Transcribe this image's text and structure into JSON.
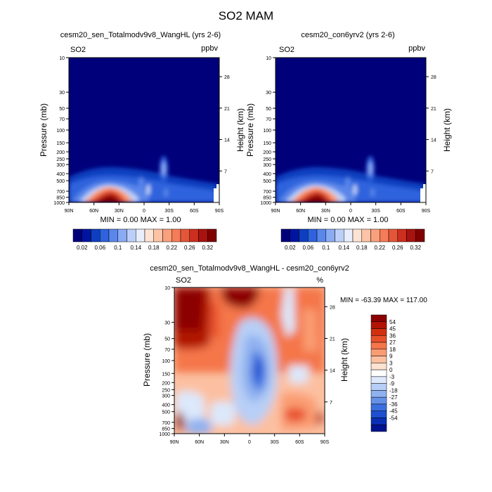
{
  "title": "SO2 MAM",
  "chart_data": [
    {
      "type": "heatmap",
      "title": "cesm20_sen_Totalmodv9v8_WangHL (yrs 2-6)",
      "left_label": "SO2",
      "right_label": "ppbv",
      "xlabel": "",
      "ylabel": "Pressure (mb)",
      "y2label": "Height (km)",
      "x_ticks": [
        "90N",
        "60N",
        "30N",
        "0",
        "30S",
        "60S",
        "90S"
      ],
      "y_ticks": [
        10,
        30,
        50,
        70,
        100,
        150,
        200,
        250,
        300,
        400,
        500,
        700,
        850,
        1000
      ],
      "y2_ticks": [
        28,
        21,
        14,
        7
      ],
      "stats": "MIN =   0.00  MAX =   1.00",
      "colorbar": {
        "orientation": "horizontal",
        "colors": [
          "#00007a",
          "#0014a0",
          "#0d3fc0",
          "#2e63dd",
          "#5a87ea",
          "#8aabf2",
          "#bccff8",
          "#e8eefc",
          "#fde3d3",
          "#fcc3a6",
          "#f9a07c",
          "#f47c58",
          "#e55638",
          "#cc2e1f",
          "#a8120f",
          "#800000"
        ],
        "labels": [
          "0.02",
          "0.06",
          "0.1",
          "0.14",
          "0.18",
          "0.22",
          "0.26",
          "0.32"
        ]
      }
    },
    {
      "type": "heatmap",
      "title": "cesm20_con6yrv2 (yrs 2-6)",
      "left_label": "SO2",
      "right_label": "ppbv",
      "xlabel": "",
      "ylabel": "Pressure (mb)",
      "y2label": "Height (km)",
      "x_ticks": [
        "90N",
        "60N",
        "30N",
        "0",
        "30S",
        "60S",
        "90S"
      ],
      "y_ticks": [
        10,
        30,
        50,
        70,
        100,
        150,
        200,
        250,
        300,
        400,
        500,
        700,
        850,
        1000
      ],
      "y2_ticks": [
        28,
        21,
        14,
        7
      ],
      "stats": "MIN =   0.00  MAX =   1.00",
      "colorbar": {
        "orientation": "horizontal",
        "colors": [
          "#00007a",
          "#0014a0",
          "#0d3fc0",
          "#2e63dd",
          "#5a87ea",
          "#8aabf2",
          "#bccff8",
          "#e8eefc",
          "#fde3d3",
          "#fcc3a6",
          "#f9a07c",
          "#f47c58",
          "#e55638",
          "#cc2e1f",
          "#a8120f",
          "#800000"
        ],
        "labels": [
          "0.02",
          "0.06",
          "0.1",
          "0.14",
          "0.18",
          "0.22",
          "0.26",
          "0.32"
        ]
      }
    },
    {
      "type": "heatmap",
      "title": "cesm20_sen_Totalmodv9v8_WangHL - cesm20_con6yrv2",
      "left_label": "SO2",
      "right_label": "%",
      "xlabel": "",
      "ylabel": "Pressure (mb)",
      "y2label": "Height (km)",
      "x_ticks": [
        "90N",
        "60N",
        "30N",
        "0",
        "30S",
        "60S",
        "90S"
      ],
      "y_ticks": [
        10,
        30,
        50,
        70,
        100,
        150,
        200,
        250,
        300,
        400,
        500,
        700,
        850,
        1000
      ],
      "y2_ticks": [
        28,
        21,
        14,
        7
      ],
      "stats": "MIN = -63.39  MAX = 117.00",
      "colorbar": {
        "orientation": "vertical",
        "colors": [
          "#8b0000",
          "#b11406",
          "#d1300f",
          "#e8502b",
          "#f4764a",
          "#fa9c72",
          "#fcc0a0",
          "#fde2d0",
          "#ffffff",
          "#dce8fb",
          "#b7cff6",
          "#8fb1f0",
          "#6591e9",
          "#3b6fe0",
          "#1d4fd0",
          "#0a2fb4",
          "#001490"
        ],
        "labels": [
          "54",
          "45",
          "36",
          "27",
          "18",
          "9",
          "3",
          "0",
          "-3",
          "-9",
          "-18",
          "-27",
          "-36",
          "-45",
          "-54"
        ]
      }
    }
  ]
}
